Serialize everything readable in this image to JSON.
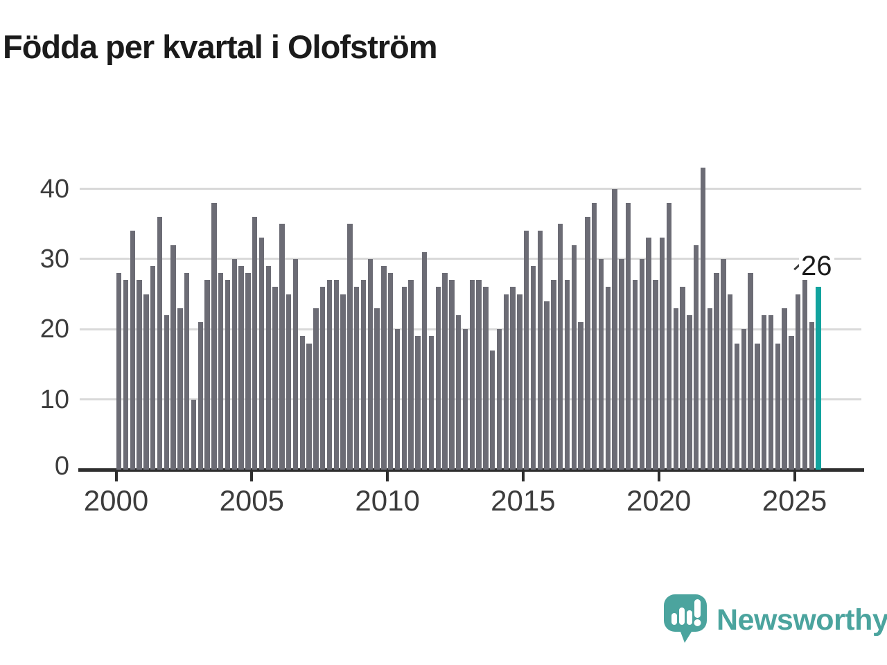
{
  "title": "Födda per kvartal i Olofström",
  "annotation": {
    "label": "26"
  },
  "logo": {
    "text": "Newsworthy"
  },
  "colors": {
    "bar": "#6c6c75",
    "highlight": "#12a39e",
    "logo_teal": "#4ba49e",
    "gridline": "#d9d9d9",
    "axis": "#2e2e2e",
    "text": "#3c3c3c",
    "title": "#1b1b1b"
  },
  "chart_data": {
    "type": "bar",
    "title": "Födda per kvartal i Olofström",
    "period": "quarterly",
    "start": "2000 Q1",
    "end": "2025 Q4",
    "x_tick_labels": [
      "2000",
      "2005",
      "2010",
      "2015",
      "2020",
      "2025"
    ],
    "y_ticks": [
      0,
      10,
      20,
      30,
      40
    ],
    "ylim": [
      0,
      45
    ],
    "grid": true,
    "highlight_last_bar": true,
    "last_bar_label": "26",
    "series": [
      {
        "name": "Födda",
        "values": [
          28,
          27,
          34,
          27,
          25,
          29,
          36,
          22,
          32,
          23,
          28,
          10,
          21,
          27,
          38,
          28,
          27,
          30,
          29,
          28,
          36,
          33,
          29,
          26,
          35,
          25,
          30,
          19,
          18,
          23,
          26,
          27,
          27,
          25,
          35,
          26,
          27,
          30,
          23,
          29,
          28,
          20,
          26,
          27,
          19,
          31,
          19,
          26,
          28,
          27,
          22,
          20,
          27,
          27,
          26,
          17,
          20,
          25,
          26,
          25,
          34,
          29,
          34,
          24,
          27,
          35,
          27,
          32,
          21,
          36,
          38,
          30,
          26,
          40,
          30,
          38,
          27,
          30,
          33,
          27,
          33,
          38,
          23,
          26,
          22,
          32,
          43,
          23,
          28,
          30,
          25,
          18,
          20,
          28,
          18,
          22,
          22,
          18,
          23,
          19,
          25,
          27,
          21,
          26
        ]
      }
    ]
  }
}
